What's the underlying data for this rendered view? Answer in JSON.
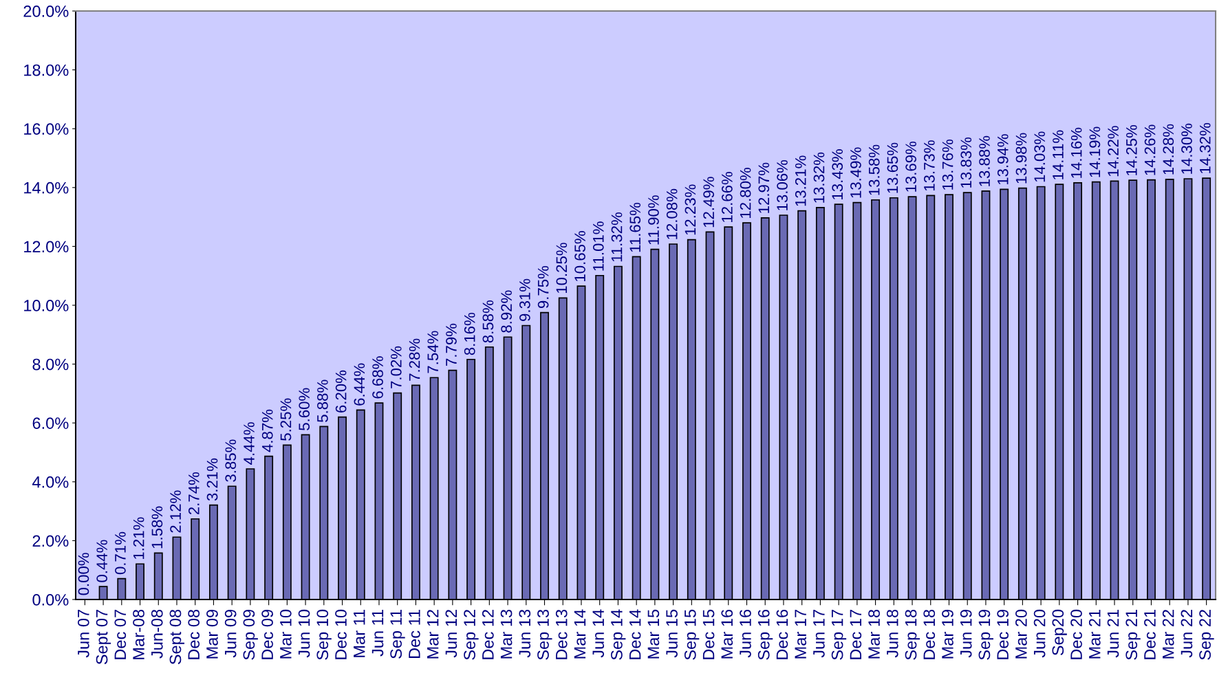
{
  "chart_data": {
    "type": "bar",
    "categories": [
      "Jun 07",
      "Sept 07",
      "Dec 07",
      "Mar-08",
      "Jun-08",
      "Sept 08",
      "Dec 08",
      "Mar 09",
      "Jun 09",
      "Sep 09",
      "Dec 09",
      "Mar 10",
      "Jun 10",
      "Sep 10",
      "Dec 10",
      "Mar 11",
      "Jun 11",
      "Sep 11",
      "Dec 11",
      "Mar 12",
      "Jun 12",
      "Sep 12",
      "Dec 12",
      "Mar 13",
      "Jun 13",
      "Sep 13",
      "Dec 13",
      "Mar 14",
      "Jun 14",
      "Sep 14",
      "Dec 14",
      "Mar 15",
      "Jun 15",
      "Sep 15",
      "Dec 15",
      "Mar 16",
      "Jun 16",
      "Sep 16",
      "Dec 16",
      "Mar 17",
      "Jun 17",
      "Sep 17",
      "Dec 17",
      "Mar 18",
      "Jun 18",
      "Sep 18",
      "Dec 18",
      "Mar 19",
      "Jun 19",
      "Sep 19",
      "Dec 19",
      "Mar 20",
      "Jun 20",
      "Sep20",
      "Dec 20",
      "Mar 21",
      "Jun 21",
      "Sep 21",
      "Dec 21",
      "Mar 22",
      "Jun 22",
      "Sep 22"
    ],
    "values": [
      0.0,
      0.44,
      0.71,
      1.21,
      1.58,
      2.12,
      2.74,
      3.21,
      3.85,
      4.44,
      4.87,
      5.25,
      5.6,
      5.88,
      6.2,
      6.44,
      6.68,
      7.02,
      7.28,
      7.54,
      7.79,
      8.16,
      8.58,
      8.92,
      9.31,
      9.75,
      10.25,
      10.65,
      11.01,
      11.32,
      11.65,
      11.9,
      12.08,
      12.23,
      12.49,
      12.66,
      12.8,
      12.97,
      13.06,
      13.21,
      13.32,
      13.43,
      13.49,
      13.58,
      13.65,
      13.69,
      13.73,
      13.76,
      13.83,
      13.88,
      13.94,
      13.98,
      14.03,
      14.11,
      14.16,
      14.19,
      14.22,
      14.25,
      14.26,
      14.28,
      14.3,
      14.32
    ],
    "value_labels": [
      "0.00%",
      "0.44%",
      "0.71%",
      "1.21%",
      "1.58%",
      "2.12%",
      "2.74%",
      "3.21%",
      "3.85%",
      "4.44%",
      "4.87%",
      "5.25%",
      "5.60%",
      "5.88%",
      "6.20%",
      "6.44%",
      "6.68%",
      "7.02%",
      "7.28%",
      "7.54%",
      "7.79%",
      "8.16%",
      "8.58%",
      "8.92%",
      "9.31%",
      "9.75%",
      "10.25%",
      "10.65%",
      "11.01%",
      "11.32%",
      "11.65%",
      "11.90%",
      "12.08%",
      "12.23%",
      "12.49%",
      "12.66%",
      "12.80%",
      "12.97%",
      "13.06%",
      "13.21%",
      "13.32%",
      "13.43%",
      "13.49%",
      "13.58%",
      "13.65%",
      "13.69%",
      "13.73%",
      "13.76%",
      "13.83%",
      "13.88%",
      "13.94%",
      "13.98%",
      "14.03%",
      "14.11%",
      "14.16%",
      "14.19%",
      "14.22%",
      "14.25%",
      "14.26%",
      "14.28%",
      "14.30%",
      "14.32%"
    ],
    "color": "#6a6ab4",
    "ylim": [
      0,
      20
    ],
    "yticks": [
      {
        "value": 0,
        "label": "0.0%"
      },
      {
        "value": 2,
        "label": "2.0%"
      },
      {
        "value": 4,
        "label": "4.0%"
      },
      {
        "value": 6,
        "label": "6.0%"
      },
      {
        "value": 8,
        "label": "8.0%"
      },
      {
        "value": 10,
        "label": "10.0%"
      },
      {
        "value": 12,
        "label": "12.0%"
      },
      {
        "value": 14,
        "label": "14.0%"
      },
      {
        "value": 16,
        "label": "16.0%"
      },
      {
        "value": 18,
        "label": "18.0%"
      },
      {
        "value": 20,
        "label": "20.0%"
      }
    ],
    "grid": false,
    "legend": false
  }
}
